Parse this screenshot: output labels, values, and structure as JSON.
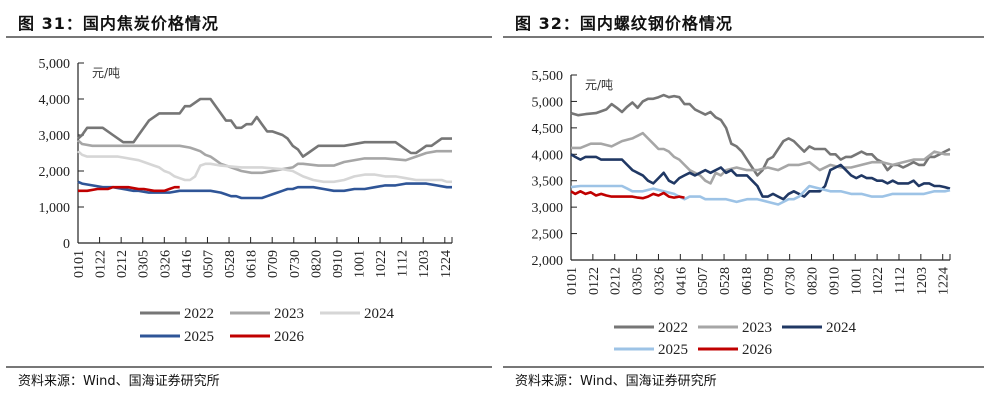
{
  "figures": [
    {
      "title": "图 31：国内焦炭价格情况",
      "source": "资料来源：Wind、国海证券研究所"
    },
    {
      "title": "图 32：国内螺纹钢价格情况",
      "source": "资料来源：Wind、国海证券研究所"
    }
  ],
  "chart_data": [
    {
      "type": "line",
      "title": "国内焦炭价格情况",
      "unit_label": "元/吨",
      "xlabel": "",
      "ylabel": "元/吨",
      "ylim": [
        0,
        5000
      ],
      "xlim": [
        1,
        365
      ],
      "y_ticks": [
        0,
        1000,
        2000,
        3000,
        4000,
        5000
      ],
      "y_tick_labels": [
        "0",
        "1,000",
        "2,000",
        "3,000",
        "4,000",
        "5,000"
      ],
      "x_ticks": [
        1,
        22,
        43,
        64,
        85,
        106,
        127,
        148,
        169,
        190,
        211,
        232,
        253,
        274,
        295,
        316,
        337,
        358
      ],
      "x_tick_labels": [
        "0101",
        "0122",
        "0212",
        "0305",
        "0326",
        "0416",
        "0507",
        "0528",
        "0618",
        "0709",
        "0730",
        "0820",
        "0910",
        "1001",
        "1022",
        "1112",
        "1203",
        "1224"
      ],
      "legend_position": "bottom",
      "grid": false,
      "series": [
        {
          "name": "2022",
          "color": "#767676",
          "x": [
            1,
            5,
            10,
            25,
            35,
            45,
            55,
            60,
            65,
            70,
            80,
            100,
            105,
            110,
            120,
            125,
            130,
            135,
            140,
            145,
            150,
            155,
            160,
            165,
            170,
            175,
            180,
            185,
            190,
            200,
            205,
            210,
            215,
            220,
            225,
            235,
            250,
            260,
            280,
            290,
            300,
            310,
            315,
            320,
            325,
            330,
            335,
            340,
            345,
            350,
            355,
            365
          ],
          "y": [
            2900,
            3000,
            3200,
            3200,
            3000,
            2800,
            2800,
            3000,
            3200,
            3400,
            3600,
            3600,
            3800,
            3800,
            4000,
            4000,
            4000,
            3800,
            3600,
            3400,
            3400,
            3200,
            3200,
            3300,
            3300,
            3500,
            3300,
            3100,
            3100,
            3000,
            2900,
            2700,
            2600,
            2400,
            2500,
            2700,
            2700,
            2700,
            2800,
            2800,
            2800,
            2800,
            2700,
            2600,
            2500,
            2500,
            2600,
            2700,
            2700,
            2800,
            2900,
            2900
          ]
        },
        {
          "name": "2023",
          "color": "#a6a6a6",
          "x": [
            1,
            5,
            15,
            40,
            60,
            80,
            100,
            110,
            115,
            120,
            125,
            130,
            135,
            140,
            145,
            150,
            160,
            170,
            180,
            200,
            210,
            215,
            220,
            235,
            240,
            250,
            260,
            280,
            290,
            300,
            320,
            330,
            340,
            350,
            365
          ],
          "y": [
            2850,
            2750,
            2700,
            2700,
            2700,
            2700,
            2700,
            2650,
            2600,
            2550,
            2450,
            2400,
            2300,
            2200,
            2150,
            2100,
            2000,
            1950,
            1950,
            2050,
            2100,
            2200,
            2200,
            2150,
            2150,
            2150,
            2250,
            2350,
            2350,
            2350,
            2300,
            2400,
            2500,
            2550,
            2550
          ]
        },
        {
          "name": "2024",
          "color": "#d6d6d6",
          "x": [
            1,
            5,
            10,
            20,
            40,
            60,
            65,
            75,
            80,
            85,
            90,
            95,
            100,
            105,
            110,
            115,
            120,
            125,
            130,
            140,
            160,
            180,
            200,
            210,
            220,
            230,
            240,
            250,
            260,
            270,
            280,
            290,
            300,
            310,
            320,
            330,
            345,
            355,
            360,
            365
          ],
          "y": [
            2550,
            2450,
            2400,
            2400,
            2400,
            2300,
            2250,
            2150,
            2100,
            2000,
            1950,
            1850,
            1800,
            1750,
            1750,
            1850,
            2150,
            2200,
            2200,
            2150,
            2100,
            2100,
            2050,
            2000,
            1850,
            1750,
            1700,
            1700,
            1750,
            1850,
            1900,
            1900,
            1850,
            1850,
            1800,
            1750,
            1750,
            1750,
            1700,
            1700
          ]
        },
        {
          "name": "2025",
          "color": "#2f5597",
          "x": [
            1,
            5,
            15,
            25,
            35,
            45,
            55,
            60,
            70,
            80,
            90,
            100,
            110,
            120,
            130,
            140,
            145,
            150,
            155,
            160,
            170,
            180,
            185,
            190,
            195,
            200,
            205,
            210,
            215,
            220,
            230,
            240,
            250,
            260,
            270,
            280,
            290,
            300,
            310,
            320,
            330,
            340,
            350,
            360,
            365
          ],
          "y": [
            1700,
            1650,
            1600,
            1550,
            1550,
            1500,
            1450,
            1450,
            1400,
            1400,
            1400,
            1450,
            1450,
            1450,
            1450,
            1400,
            1350,
            1300,
            1300,
            1250,
            1250,
            1250,
            1300,
            1350,
            1400,
            1450,
            1500,
            1500,
            1550,
            1550,
            1550,
            1500,
            1450,
            1450,
            1500,
            1500,
            1550,
            1600,
            1600,
            1650,
            1650,
            1650,
            1600,
            1550,
            1550
          ]
        },
        {
          "name": "2026",
          "color": "#c00000",
          "x": [
            1,
            10,
            20,
            30,
            35,
            50,
            60,
            65,
            75,
            85,
            90,
            95,
            100
          ],
          "y": [
            1450,
            1450,
            1500,
            1500,
            1550,
            1550,
            1500,
            1500,
            1450,
            1450,
            1500,
            1550,
            1550
          ]
        }
      ]
    },
    {
      "type": "line",
      "title": "国内螺纹钢价格情况",
      "unit_label": "元/吨",
      "xlabel": "",
      "ylabel": "元/吨",
      "ylim": [
        2000,
        5500
      ],
      "xlim": [
        1,
        365
      ],
      "y_ticks": [
        2000,
        2500,
        3000,
        3500,
        4000,
        4500,
        5000,
        5500
      ],
      "y_tick_labels": [
        "2,000",
        "2,500",
        "3,000",
        "3,500",
        "4,000",
        "4,500",
        "5,000",
        "5,500"
      ],
      "x_ticks": [
        1,
        22,
        43,
        64,
        85,
        106,
        127,
        148,
        169,
        190,
        211,
        232,
        253,
        274,
        295,
        316,
        337,
        358
      ],
      "x_tick_labels": [
        "0101",
        "0122",
        "0212",
        "0305",
        "0326",
        "0416",
        "0507",
        "0528",
        "0618",
        "0709",
        "0730",
        "0820",
        "0910",
        "1001",
        "1022",
        "1112",
        "1203",
        "1224"
      ],
      "legend_position": "bottom",
      "grid": false,
      "series": [
        {
          "name": "2022",
          "color": "#767676",
          "x": [
            1,
            8,
            15,
            25,
            35,
            40,
            45,
            50,
            55,
            60,
            65,
            70,
            75,
            80,
            85,
            90,
            95,
            100,
            105,
            110,
            115,
            120,
            125,
            130,
            135,
            140,
            145,
            150,
            155,
            160,
            165,
            170,
            175,
            180,
            185,
            190,
            195,
            200,
            205,
            210,
            215,
            220,
            225,
            230,
            235,
            240,
            245,
            250,
            255,
            260,
            265,
            270,
            275,
            280,
            285,
            290,
            295,
            300,
            305,
            310,
            315,
            320,
            325,
            330,
            335,
            340,
            345,
            350,
            355,
            360,
            365
          ],
          "y": [
            4780,
            4740,
            4760,
            4780,
            4850,
            4950,
            4880,
            4800,
            4900,
            4980,
            4880,
            5000,
            5050,
            5050,
            5080,
            5120,
            5080,
            5100,
            5080,
            4950,
            4950,
            4850,
            4800,
            4750,
            4800,
            4700,
            4650,
            4500,
            4200,
            4150,
            4050,
            3900,
            3750,
            3600,
            3700,
            3900,
            3950,
            4100,
            4250,
            4300,
            4250,
            4150,
            4050,
            4150,
            4100,
            4100,
            4100,
            4000,
            4000,
            3900,
            3950,
            3950,
            4000,
            4050,
            4000,
            4000,
            3900,
            3850,
            3700,
            3800,
            3800,
            3750,
            3800,
            3850,
            3800,
            3800,
            3950,
            3950,
            4000,
            4050,
            4100
          ]
        },
        {
          "name": "2023",
          "color": "#a6a6a6",
          "x": [
            1,
            10,
            20,
            30,
            40,
            50,
            60,
            65,
            70,
            75,
            80,
            85,
            90,
            95,
            100,
            105,
            110,
            115,
            120,
            125,
            130,
            135,
            140,
            145,
            150,
            160,
            170,
            180,
            190,
            200,
            210,
            220,
            230,
            240,
            250,
            260,
            270,
            280,
            290,
            300,
            310,
            320,
            330,
            340,
            350,
            360,
            365
          ],
          "y": [
            4120,
            4120,
            4200,
            4200,
            4150,
            4250,
            4300,
            4350,
            4400,
            4300,
            4200,
            4100,
            4100,
            4050,
            3950,
            3900,
            3800,
            3700,
            3650,
            3600,
            3500,
            3450,
            3650,
            3600,
            3700,
            3750,
            3700,
            3700,
            3750,
            3700,
            3800,
            3800,
            3850,
            3700,
            3800,
            3750,
            3750,
            3800,
            3850,
            3850,
            3800,
            3850,
            3900,
            3900,
            4050,
            4000,
            4000
          ]
        },
        {
          "name": "2024",
          "color": "#203864",
          "x": [
            1,
            5,
            10,
            15,
            20,
            25,
            30,
            40,
            50,
            55,
            60,
            65,
            70,
            75,
            80,
            85,
            90,
            95,
            100,
            105,
            110,
            115,
            120,
            125,
            130,
            135,
            140,
            145,
            150,
            155,
            160,
            165,
            170,
            175,
            180,
            185,
            190,
            195,
            200,
            205,
            210,
            215,
            220,
            225,
            230,
            235,
            240,
            245,
            250,
            255,
            260,
            265,
            270,
            275,
            280,
            285,
            290,
            295,
            300,
            305,
            310,
            315,
            320,
            325,
            330,
            335,
            340,
            345,
            350,
            355,
            360,
            365
          ],
          "y": [
            4000,
            3950,
            3900,
            3950,
            3950,
            3950,
            3900,
            3900,
            3900,
            3800,
            3700,
            3650,
            3600,
            3500,
            3450,
            3550,
            3650,
            3500,
            3450,
            3550,
            3600,
            3650,
            3600,
            3650,
            3700,
            3650,
            3700,
            3750,
            3650,
            3700,
            3600,
            3600,
            3600,
            3500,
            3400,
            3200,
            3200,
            3250,
            3200,
            3150,
            3250,
            3300,
            3250,
            3200,
            3300,
            3300,
            3300,
            3400,
            3700,
            3750,
            3800,
            3700,
            3600,
            3550,
            3600,
            3550,
            3550,
            3500,
            3500,
            3450,
            3500,
            3450,
            3450,
            3450,
            3500,
            3400,
            3450,
            3450,
            3400,
            3400,
            3380,
            3350
          ]
        },
        {
          "name": "2025",
          "color": "#9dc3e6",
          "x": [
            1,
            10,
            20,
            30,
            40,
            50,
            55,
            60,
            70,
            80,
            90,
            100,
            105,
            110,
            115,
            120,
            125,
            130,
            140,
            150,
            160,
            170,
            180,
            190,
            200,
            210,
            215,
            220,
            225,
            230,
            240,
            250,
            260,
            270,
            280,
            290,
            300,
            310,
            320,
            330,
            340,
            350,
            360,
            365
          ],
          "y": [
            3380,
            3400,
            3400,
            3400,
            3400,
            3400,
            3350,
            3300,
            3300,
            3350,
            3300,
            3250,
            3200,
            3150,
            3200,
            3200,
            3200,
            3150,
            3150,
            3150,
            3100,
            3150,
            3150,
            3100,
            3050,
            3150,
            3150,
            3200,
            3300,
            3400,
            3350,
            3300,
            3300,
            3250,
            3250,
            3200,
            3200,
            3250,
            3250,
            3250,
            3250,
            3300,
            3300,
            3320
          ]
        },
        {
          "name": "2026",
          "color": "#c00000",
          "x": [
            1,
            5,
            10,
            15,
            20,
            25,
            30,
            35,
            40,
            50,
            60,
            65,
            70,
            75,
            80,
            85,
            90,
            95,
            100,
            105,
            110
          ],
          "y": [
            3300,
            3250,
            3300,
            3250,
            3280,
            3220,
            3250,
            3220,
            3200,
            3200,
            3200,
            3180,
            3170,
            3200,
            3250,
            3220,
            3270,
            3200,
            3180,
            3200,
            3180
          ]
        }
      ]
    }
  ]
}
